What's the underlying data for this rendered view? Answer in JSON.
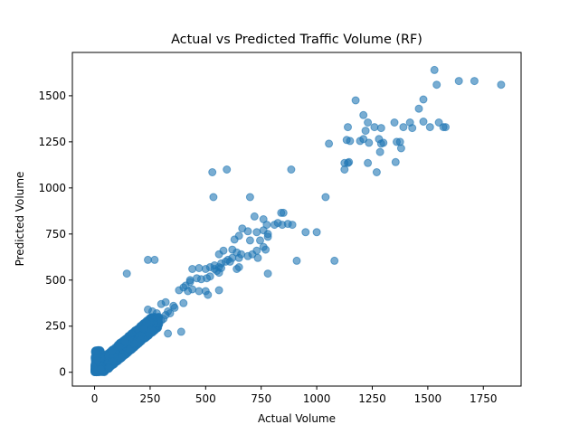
{
  "chart_data": {
    "type": "scatter",
    "title": "Actual vs Predicted Traffic Volume (RF)",
    "xlabel": "Actual Volume",
    "ylabel": "Predicted Volume",
    "xlim": [
      -100,
      1920
    ],
    "ylim": [
      -75,
      1735
    ],
    "xticks": [
      0,
      250,
      500,
      750,
      1000,
      1250,
      1500,
      1750
    ],
    "yticks": [
      0,
      250,
      500,
      750,
      1000,
      1250,
      1500
    ],
    "grid": false,
    "legend": "none",
    "point_color": "#1f77b4",
    "point_alpha": 0.6,
    "cluster_low_range": {
      "x": [
        0,
        290
      ],
      "y": [
        0,
        300
      ],
      "note_count_estimate": 1500
    },
    "points": [
      [
        1530,
        1640
      ],
      [
        1640,
        1580
      ],
      [
        1710,
        1580
      ],
      [
        1830,
        1560
      ],
      [
        1540,
        1560
      ],
      [
        1175,
        1475
      ],
      [
        1480,
        1480
      ],
      [
        1210,
        1395
      ],
      [
        1460,
        1430
      ],
      [
        1140,
        1330
      ],
      [
        1230,
        1355
      ],
      [
        1350,
        1355
      ],
      [
        1420,
        1355
      ],
      [
        1480,
        1360
      ],
      [
        1550,
        1355
      ],
      [
        1570,
        1330
      ],
      [
        1580,
        1330
      ],
      [
        1510,
        1330
      ],
      [
        1430,
        1325
      ],
      [
        1390,
        1330
      ],
      [
        1290,
        1325
      ],
      [
        1260,
        1330
      ],
      [
        1220,
        1310
      ],
      [
        1135,
        1260
      ],
      [
        1150,
        1255
      ],
      [
        1195,
        1255
      ],
      [
        1210,
        1265
      ],
      [
        1235,
        1245
      ],
      [
        1280,
        1265
      ],
      [
        1300,
        1245
      ],
      [
        1290,
        1240
      ],
      [
        1360,
        1250
      ],
      [
        1375,
        1250
      ],
      [
        1380,
        1215
      ],
      [
        1285,
        1195
      ],
      [
        1055,
        1240
      ],
      [
        1125,
        1135
      ],
      [
        1140,
        1135
      ],
      [
        1145,
        1140
      ],
      [
        1230,
        1135
      ],
      [
        1355,
        1140
      ],
      [
        1125,
        1100
      ],
      [
        1270,
        1085
      ],
      [
        530,
        1085
      ],
      [
        595,
        1100
      ],
      [
        885,
        1100
      ],
      [
        535,
        950
      ],
      [
        700,
        950
      ],
      [
        1040,
        950
      ],
      [
        840,
        865
      ],
      [
        850,
        865
      ],
      [
        720,
        845
      ],
      [
        760,
        830
      ],
      [
        775,
        800
      ],
      [
        810,
        800
      ],
      [
        825,
        810
      ],
      [
        845,
        800
      ],
      [
        870,
        805
      ],
      [
        890,
        800
      ],
      [
        665,
        780
      ],
      [
        690,
        765
      ],
      [
        730,
        760
      ],
      [
        760,
        770
      ],
      [
        780,
        750
      ],
      [
        950,
        760
      ],
      [
        1000,
        760
      ],
      [
        780,
        735
      ],
      [
        650,
        740
      ],
      [
        630,
        720
      ],
      [
        700,
        715
      ],
      [
        745,
        715
      ],
      [
        760,
        680
      ],
      [
        770,
        665
      ],
      [
        560,
        640
      ],
      [
        580,
        660
      ],
      [
        620,
        665
      ],
      [
        640,
        650
      ],
      [
        660,
        640
      ],
      [
        690,
        630
      ],
      [
        710,
        640
      ],
      [
        730,
        660
      ],
      [
        735,
        620
      ],
      [
        600,
        610
      ],
      [
        610,
        600
      ],
      [
        590,
        600
      ],
      [
        570,
        590
      ],
      [
        620,
        620
      ],
      [
        650,
        620
      ],
      [
        560,
        570
      ],
      [
        240,
        610
      ],
      [
        270,
        610
      ],
      [
        540,
        560
      ],
      [
        550,
        550
      ],
      [
        560,
        540
      ],
      [
        540,
        580
      ],
      [
        520,
        570
      ],
      [
        570,
        565
      ],
      [
        500,
        560
      ],
      [
        470,
        565
      ],
      [
        440,
        560
      ],
      [
        430,
        500
      ],
      [
        460,
        510
      ],
      [
        480,
        505
      ],
      [
        505,
        510
      ],
      [
        520,
        520
      ],
      [
        430,
        490
      ],
      [
        410,
        470
      ],
      [
        400,
        460
      ],
      [
        380,
        445
      ],
      [
        420,
        440
      ],
      [
        440,
        450
      ],
      [
        470,
        440
      ],
      [
        500,
        440
      ],
      [
        510,
        420
      ],
      [
        560,
        445
      ],
      [
        145,
        535
      ],
      [
        780,
        535
      ],
      [
        910,
        605
      ],
      [
        1080,
        605
      ],
      [
        640,
        560
      ],
      [
        650,
        570
      ],
      [
        355,
        360
      ],
      [
        360,
        350
      ],
      [
        340,
        320
      ],
      [
        330,
        330
      ],
      [
        320,
        310
      ],
      [
        300,
        370
      ],
      [
        320,
        380
      ],
      [
        400,
        375
      ],
      [
        280,
        320
      ],
      [
        290,
        300
      ],
      [
        310,
        290
      ],
      [
        390,
        220
      ],
      [
        330,
        210
      ],
      [
        300,
        280
      ],
      [
        240,
        340
      ],
      [
        260,
        330
      ]
    ]
  }
}
